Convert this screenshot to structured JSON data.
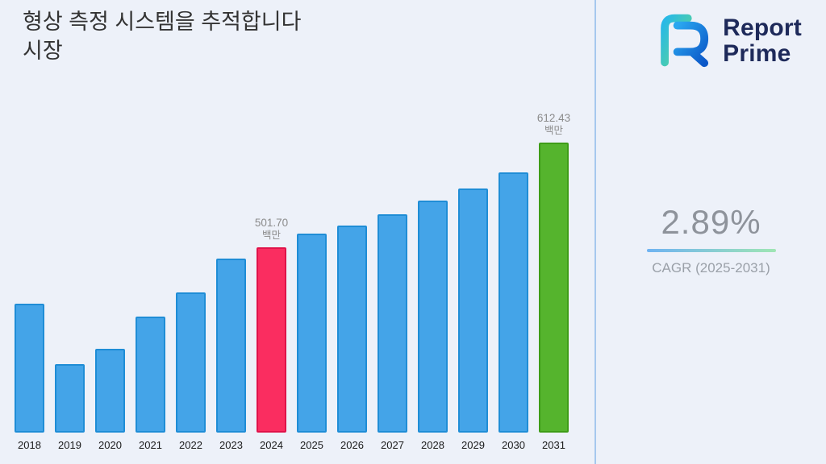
{
  "header": {
    "title": "형상 측정 시스템을 추적합니다\n시장"
  },
  "logo": {
    "line1": "Report",
    "line2": "Prime"
  },
  "stats": {
    "cagr_value": "2.89%",
    "cagr_label": "CAGR (2025-2031)"
  },
  "chart_data": {
    "type": "bar",
    "title": "형상 측정 시스템을 추적합니다 시장",
    "categories": [
      "2018",
      "2019",
      "2020",
      "2021",
      "2022",
      "2023",
      "2024",
      "2025",
      "2026",
      "2027",
      "2028",
      "2029",
      "2030",
      "2031"
    ],
    "values": [
      442,
      378,
      394,
      428,
      454,
      490,
      501.7,
      516,
      525,
      537,
      551,
      564,
      581,
      612.43
    ],
    "unit": "백만",
    "xlabel": "",
    "ylabel": "",
    "ylim": [
      305,
      640
    ],
    "grid": false,
    "legend": false,
    "annotations": [
      {
        "category": "2024",
        "value_label": "501.70",
        "unit": "백만"
      },
      {
        "category": "2031",
        "value_label": "612.43",
        "unit": "백만"
      }
    ],
    "colors": {
      "default": {
        "fill": "#44A4E8",
        "stroke": "#1F8DD6"
      },
      "highlight": {
        "2024": {
          "fill": "#FA2D60",
          "stroke": "#E0134A"
        },
        "2031": {
          "fill": "#55B42D",
          "stroke": "#3E9C17"
        }
      }
    }
  }
}
